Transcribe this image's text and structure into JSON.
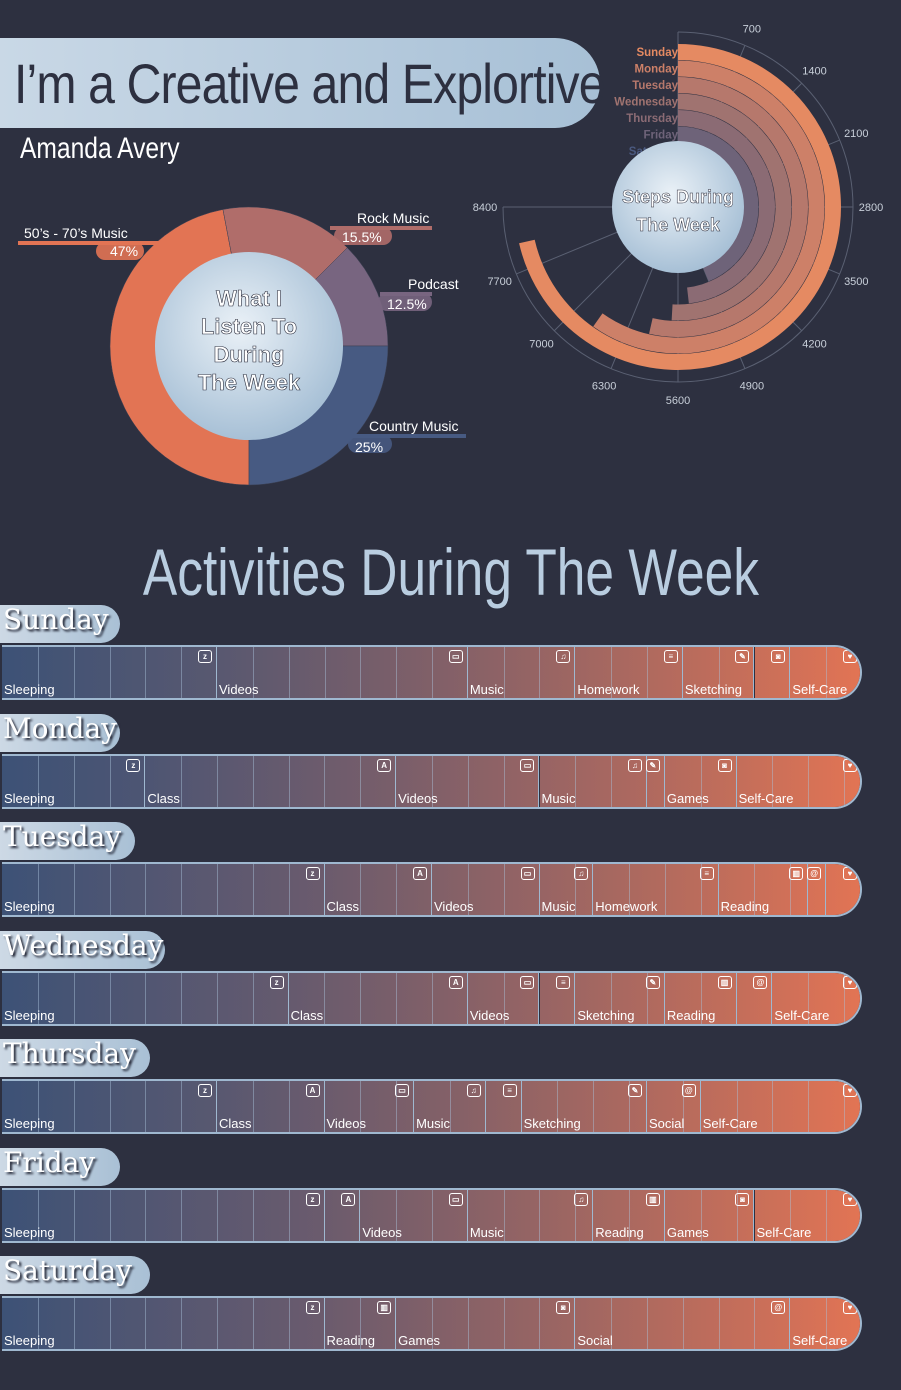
{
  "header": {
    "title": "I’m a Creative and Explortive",
    "subtitle": "Amanda Avery"
  },
  "colors": {
    "background": "#2d3040",
    "blue": "#3d5276",
    "orange": "#e27454",
    "pill": "#b5c9dc"
  },
  "chart_data": [
    {
      "type": "pie",
      "title": "What I Listen To During The Week",
      "slices": [
        {
          "label": "50’s - 70’s Music",
          "value": 47,
          "value_label": "47%",
          "color": "#e27454"
        },
        {
          "label": "Rock Music",
          "value": 15.5,
          "value_label": "15.5%",
          "color": "#b06d6a"
        },
        {
          "label": "Podcast",
          "value": 12.5,
          "value_label": "12.5%",
          "color": "#786580"
        },
        {
          "label": "Country Music",
          "value": 25,
          "value_label": "25%",
          "color": "#475a82"
        }
      ]
    },
    {
      "type": "bar",
      "title": "Steps During The Week",
      "orientation": "radial",
      "categories": [
        "Sunday",
        "Monday",
        "Tuesday",
        "Wednesday",
        "Thursday",
        "Friday",
        "Saturday"
      ],
      "values": [
        8000,
        6700,
        6000,
        5700,
        5400,
        4900,
        4400
      ],
      "axis_ticks": [
        "700",
        "1400",
        "2100",
        "2800",
        "3500",
        "4200",
        "4900",
        "5600",
        "6300",
        "7000",
        "7700",
        "8400"
      ],
      "range": [
        0,
        8400
      ],
      "category_colors": [
        "#e58a62",
        "#cd8068",
        "#b6786c",
        "#a07370",
        "#8b6b74",
        "#6e6379",
        "#4b5a80"
      ]
    },
    {
      "type": "bar",
      "orientation": "horizontal-stacked",
      "title": "Activities During The Week",
      "unit": "hours",
      "hours_per_day": 24,
      "days": [
        {
          "day": "Sunday",
          "segments": [
            {
              "label": "Sleeping",
              "hours": 6,
              "icon": "sleep-icon"
            },
            {
              "label": "Videos",
              "hours": 7,
              "icon": "tv-icon"
            },
            {
              "label": "Music",
              "hours": 3,
              "icon": "music-icon"
            },
            {
              "label": "Homework",
              "hours": 3,
              "icon": "homework-icon"
            },
            {
              "label": "Sketching",
              "hours": 2,
              "icon": "sketch-icon"
            },
            {
              "label": "",
              "hours": 1,
              "icon": "games-icon"
            },
            {
              "label": "Self-Care",
              "hours": 2,
              "icon": "heart-icon"
            }
          ]
        },
        {
          "day": "Monday",
          "segments": [
            {
              "label": "Sleeping",
              "hours": 4,
              "icon": "sleep-icon"
            },
            {
              "label": "Class",
              "hours": 7,
              "icon": "class-icon"
            },
            {
              "label": "Videos",
              "hours": 4,
              "icon": "tv-icon"
            },
            {
              "label": "Music",
              "hours": 3,
              "icon": "music-icon"
            },
            {
              "label": "",
              "hours": 0.5,
              "icon": "sketch-icon"
            },
            {
              "label": "Games",
              "hours": 2,
              "icon": "games-icon"
            },
            {
              "label": "Self-Care",
              "hours": 3.5,
              "icon": "heart-icon"
            }
          ]
        },
        {
          "day": "Tuesday",
          "segments": [
            {
              "label": "Sleeping",
              "hours": 9,
              "icon": "sleep-icon"
            },
            {
              "label": "Class",
              "hours": 3,
              "icon": "class-icon"
            },
            {
              "label": "Videos",
              "hours": 3,
              "icon": "tv-icon"
            },
            {
              "label": "Music",
              "hours": 1.5,
              "icon": "music-icon"
            },
            {
              "label": "Homework",
              "hours": 3.5,
              "icon": "homework-icon"
            },
            {
              "label": "Reading",
              "hours": 2.5,
              "icon": "book-icon"
            },
            {
              "label": "",
              "hours": 0.5,
              "icon": "social-icon"
            },
            {
              "label": "",
              "hours": 1,
              "icon": "heart-icon"
            }
          ]
        },
        {
          "day": "Wednesday",
          "segments": [
            {
              "label": "Sleeping",
              "hours": 8,
              "icon": "sleep-icon"
            },
            {
              "label": "Class",
              "hours": 5,
              "icon": "class-icon"
            },
            {
              "label": "Videos",
              "hours": 2,
              "icon": "tv-icon"
            },
            {
              "label": "",
              "hours": 1,
              "icon": "homework-icon"
            },
            {
              "label": "Sketching",
              "hours": 2.5,
              "icon": "sketch-icon"
            },
            {
              "label": "Reading",
              "hours": 2,
              "icon": "book-icon"
            },
            {
              "label": "",
              "hours": 1,
              "icon": "social-icon"
            },
            {
              "label": "Self-Care",
              "hours": 2.5,
              "icon": "heart-icon"
            }
          ]
        },
        {
          "day": "Thursday",
          "segments": [
            {
              "label": "Sleeping",
              "hours": 6,
              "icon": "sleep-icon"
            },
            {
              "label": "Class",
              "hours": 3,
              "icon": "class-icon"
            },
            {
              "label": "Videos",
              "hours": 2.5,
              "icon": "tv-icon"
            },
            {
              "label": "Music",
              "hours": 2,
              "icon": "music-icon"
            },
            {
              "label": "",
              "hours": 1,
              "icon": "homework-icon"
            },
            {
              "label": "Sketching",
              "hours": 3.5,
              "icon": "sketch-icon"
            },
            {
              "label": "Social",
              "hours": 1.5,
              "icon": "social-icon"
            },
            {
              "label": "Self-Care",
              "hours": 4.5,
              "icon": "heart-icon"
            }
          ]
        },
        {
          "day": "Friday",
          "segments": [
            {
              "label": "Sleeping",
              "hours": 9,
              "icon": "sleep-icon"
            },
            {
              "label": "",
              "hours": 1,
              "icon": "class-icon"
            },
            {
              "label": "Videos",
              "hours": 3,
              "icon": "tv-icon"
            },
            {
              "label": "Music",
              "hours": 3.5,
              "icon": "music-icon"
            },
            {
              "label": "Reading",
              "hours": 2,
              "icon": "book-icon"
            },
            {
              "label": "Games",
              "hours": 2.5,
              "icon": "games-icon"
            },
            {
              "label": "Self-Care",
              "hours": 3,
              "icon": "heart-icon"
            }
          ]
        },
        {
          "day": "Saturday",
          "segments": [
            {
              "label": "Sleeping",
              "hours": 9,
              "icon": "sleep-icon"
            },
            {
              "label": "Reading",
              "hours": 2,
              "icon": "book-icon"
            },
            {
              "label": "Games",
              "hours": 5,
              "icon": "games-icon"
            },
            {
              "label": "Social",
              "hours": 6,
              "icon": "social-icon"
            },
            {
              "label": "Self-Care",
              "hours": 2,
              "icon": "heart-icon"
            }
          ]
        }
      ]
    }
  ]
}
